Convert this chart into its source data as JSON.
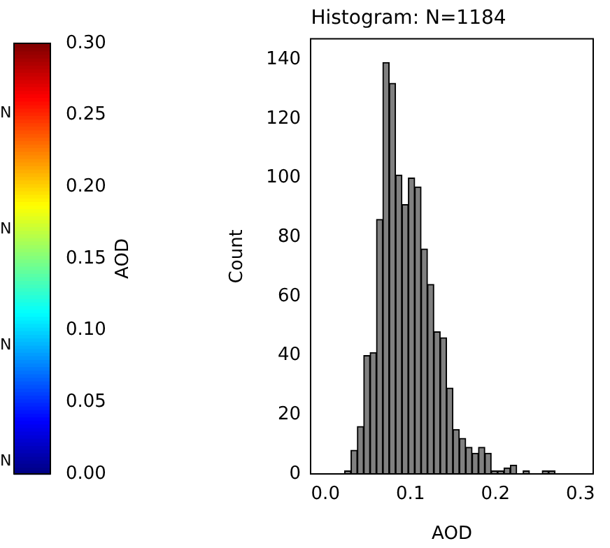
{
  "chart_data": {
    "type": "histogram",
    "title": "Histogram: N=1184",
    "xlabel": "AOD",
    "ylabel": "Count",
    "color": "#808080",
    "bins": [
      0,
      0.0075,
      0.015,
      0.0225,
      0.03,
      0.0375,
      0.045,
      0.0525,
      0.06,
      0.0675,
      0.075,
      0.0825,
      0.09,
      0.0975,
      0.105,
      0.1125,
      0.12,
      0.1275,
      0.135,
      0.1425,
      0.15,
      0.1575,
      0.165,
      0.1725,
      0.18,
      0.1875,
      0.195,
      0.2025,
      0.21,
      0.2175,
      0.225,
      0.2325,
      0.24,
      0.2475,
      0.255,
      0.2625,
      0.27
    ],
    "values": [
      0,
      0,
      0,
      1,
      8,
      16,
      40,
      41,
      86,
      139,
      132,
      101,
      91,
      100,
      97,
      76,
      64,
      48,
      46,
      29,
      15,
      12,
      9,
      7,
      9,
      7,
      1,
      1,
      2,
      3,
      0,
      1,
      0,
      0,
      1,
      1
    ],
    "xlim": [
      -0.0175,
      0.315
    ],
    "xticks": [
      {
        "value": 0,
        "label": "0.0"
      },
      {
        "value": 0.1,
        "label": "0.1"
      },
      {
        "value": 0.2,
        "label": "0.2"
      },
      {
        "value": 0.3,
        "label": "0.3"
      }
    ],
    "ylim": [
      0,
      147
    ],
    "yticks": [
      0,
      20,
      40,
      60,
      80,
      100,
      120,
      140
    ],
    "grid": false,
    "legend": false,
    "clabel": "AOD",
    "clim": [
      0,
      0.3
    ],
    "cticks": [
      {
        "value": 0,
        "label": "0.00"
      },
      {
        "value": 0.05,
        "label": "0.05"
      },
      {
        "value": 0.1,
        "label": "0.10"
      },
      {
        "value": 0.15,
        "label": "0.15"
      },
      {
        "value": 0.2,
        "label": "0.20"
      },
      {
        "value": 0.25,
        "label": "0.25"
      },
      {
        "value": 0.3,
        "label": "0.30"
      }
    ],
    "annotations": [
      "N",
      "N",
      "N",
      "N"
    ]
  }
}
